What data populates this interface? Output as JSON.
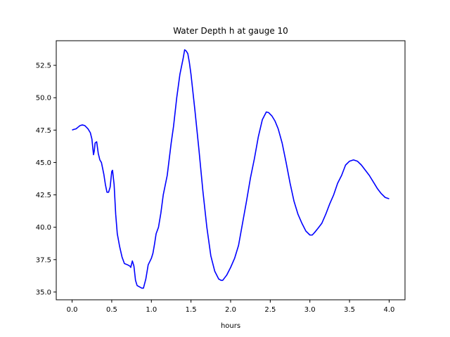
{
  "chart_data": {
    "type": "line",
    "title": "Water Depth h at gauge 10",
    "xlabel": "hours",
    "ylabel": "",
    "xlim": [
      -0.2,
      4.2
    ],
    "ylim": [
      34.4,
      54.4
    ],
    "xticks": [
      0.0,
      0.5,
      1.0,
      1.5,
      2.0,
      2.5,
      3.0,
      3.5,
      4.0
    ],
    "xtick_labels": [
      "0.0",
      "0.5",
      "1.0",
      "1.5",
      "2.0",
      "2.5",
      "3.0",
      "3.5",
      "4.0"
    ],
    "yticks": [
      35.0,
      37.5,
      40.0,
      42.5,
      45.0,
      47.5,
      50.0,
      52.5
    ],
    "ytick_labels": [
      "35.0",
      "37.5",
      "40.0",
      "42.5",
      "45.0",
      "47.5",
      "50.0",
      "52.5"
    ],
    "grid": false,
    "line_color": "#0000ff",
    "series": [
      {
        "points": [
          [
            0.0,
            47.5
          ],
          [
            0.02,
            47.55
          ],
          [
            0.05,
            47.6
          ],
          [
            0.08,
            47.75
          ],
          [
            0.1,
            47.85
          ],
          [
            0.13,
            47.9
          ],
          [
            0.16,
            47.85
          ],
          [
            0.2,
            47.6
          ],
          [
            0.23,
            47.3
          ],
          [
            0.25,
            46.8
          ],
          [
            0.27,
            45.6
          ],
          [
            0.28,
            45.9
          ],
          [
            0.29,
            46.5
          ],
          [
            0.31,
            46.6
          ],
          [
            0.33,
            45.7
          ],
          [
            0.35,
            45.2
          ],
          [
            0.37,
            45.0
          ],
          [
            0.4,
            44.1
          ],
          [
            0.42,
            43.3
          ],
          [
            0.44,
            42.7
          ],
          [
            0.46,
            42.7
          ],
          [
            0.48,
            43.1
          ],
          [
            0.5,
            44.3
          ],
          [
            0.51,
            44.4
          ],
          [
            0.53,
            43.3
          ],
          [
            0.55,
            41.0
          ],
          [
            0.57,
            39.5
          ],
          [
            0.6,
            38.5
          ],
          [
            0.63,
            37.7
          ],
          [
            0.66,
            37.2
          ],
          [
            0.7,
            37.1
          ],
          [
            0.73,
            37.0
          ],
          [
            0.74,
            36.9
          ],
          [
            0.76,
            37.4
          ],
          [
            0.78,
            37.0
          ],
          [
            0.8,
            35.9
          ],
          [
            0.82,
            35.5
          ],
          [
            0.85,
            35.4
          ],
          [
            0.88,
            35.3
          ],
          [
            0.9,
            35.3
          ],
          [
            0.93,
            36.0
          ],
          [
            0.96,
            37.1
          ],
          [
            1.0,
            37.6
          ],
          [
            1.02,
            38.0
          ],
          [
            1.04,
            38.7
          ],
          [
            1.06,
            39.5
          ],
          [
            1.09,
            40.0
          ],
          [
            1.12,
            41.1
          ],
          [
            1.15,
            42.5
          ],
          [
            1.2,
            44.0
          ],
          [
            1.25,
            46.5
          ],
          [
            1.28,
            47.8
          ],
          [
            1.32,
            50.0
          ],
          [
            1.36,
            51.8
          ],
          [
            1.4,
            53.0
          ],
          [
            1.42,
            53.7
          ],
          [
            1.44,
            53.6
          ],
          [
            1.46,
            53.4
          ],
          [
            1.48,
            52.7
          ],
          [
            1.5,
            51.8
          ],
          [
            1.55,
            49.0
          ],
          [
            1.6,
            46.0
          ],
          [
            1.65,
            42.8
          ],
          [
            1.7,
            40.0
          ],
          [
            1.75,
            37.8
          ],
          [
            1.8,
            36.6
          ],
          [
            1.85,
            36.0
          ],
          [
            1.88,
            35.9
          ],
          [
            1.9,
            35.9
          ],
          [
            1.95,
            36.3
          ],
          [
            2.0,
            36.9
          ],
          [
            2.05,
            37.6
          ],
          [
            2.1,
            38.6
          ],
          [
            2.15,
            40.3
          ],
          [
            2.2,
            42.0
          ],
          [
            2.25,
            43.8
          ],
          [
            2.3,
            45.3
          ],
          [
            2.35,
            47.0
          ],
          [
            2.4,
            48.3
          ],
          [
            2.45,
            48.9
          ],
          [
            2.48,
            48.85
          ],
          [
            2.52,
            48.6
          ],
          [
            2.56,
            48.2
          ],
          [
            2.6,
            47.6
          ],
          [
            2.65,
            46.5
          ],
          [
            2.7,
            45.0
          ],
          [
            2.75,
            43.4
          ],
          [
            2.8,
            42.0
          ],
          [
            2.85,
            41.0
          ],
          [
            2.9,
            40.3
          ],
          [
            2.95,
            39.7
          ],
          [
            3.0,
            39.4
          ],
          [
            3.03,
            39.4
          ],
          [
            3.06,
            39.6
          ],
          [
            3.1,
            39.9
          ],
          [
            3.15,
            40.3
          ],
          [
            3.2,
            41.0
          ],
          [
            3.25,
            41.8
          ],
          [
            3.3,
            42.5
          ],
          [
            3.35,
            43.4
          ],
          [
            3.4,
            44.0
          ],
          [
            3.45,
            44.8
          ],
          [
            3.5,
            45.1
          ],
          [
            3.55,
            45.2
          ],
          [
            3.6,
            45.1
          ],
          [
            3.65,
            44.8
          ],
          [
            3.7,
            44.4
          ],
          [
            3.75,
            44.0
          ],
          [
            3.8,
            43.5
          ],
          [
            3.85,
            43.0
          ],
          [
            3.9,
            42.6
          ],
          [
            3.95,
            42.3
          ],
          [
            4.0,
            42.2
          ]
        ]
      }
    ]
  }
}
